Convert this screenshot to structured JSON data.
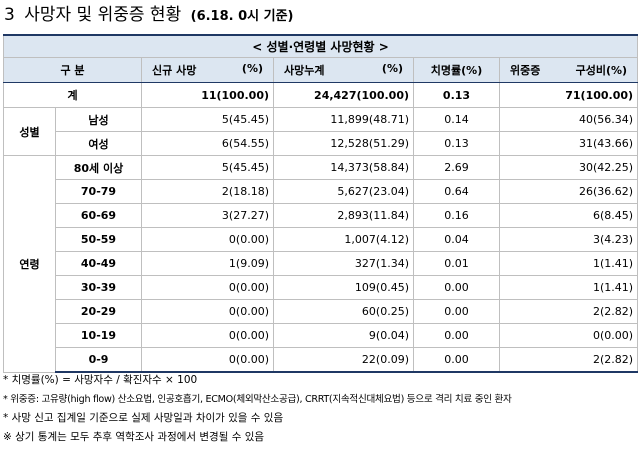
{
  "heading": {
    "number": "3",
    "title": "사망자 및 위중증 현황",
    "subtitle": "(6.18. 0시 기준)"
  },
  "table": {
    "caption": "< 성별·연령별 사망현황 >",
    "headers": {
      "category": "구 분",
      "new_deaths": "신규 사망",
      "new_deaths_unit": "(%)",
      "cumulative": "사망누계",
      "cumulative_unit": "(%)",
      "fatality": "치명률(%)",
      "severe": "위중증",
      "severe_ratio": "구성비(%)"
    },
    "total": {
      "label": "계",
      "new_deaths": "11(100.00)",
      "cumulative": "24,427(100.00)",
      "fatality": "0.13",
      "severe": "71(100.00)"
    },
    "sex": {
      "group_label": "성별",
      "rows": [
        {
          "label": "남성",
          "new_deaths": "5(45.45)",
          "cumulative": "11,899(48.71)",
          "fatality": "0.14",
          "severe": "40(56.34)"
        },
        {
          "label": "여성",
          "new_deaths": "6(54.55)",
          "cumulative": "12,528(51.29)",
          "fatality": "0.13",
          "severe": "31(43.66)"
        }
      ]
    },
    "age": {
      "group_label": "연령",
      "rows": [
        {
          "label": "80세 이상",
          "new_deaths": "5(45.45)",
          "cumulative": "14,373(58.84)",
          "fatality": "2.69",
          "severe": "30(42.25)"
        },
        {
          "label": "70-79",
          "new_deaths": "2(18.18)",
          "cumulative": "5,627(23.04)",
          "fatality": "0.64",
          "severe": "26(36.62)"
        },
        {
          "label": "60-69",
          "new_deaths": "3(27.27)",
          "cumulative": "2,893(11.84)",
          "fatality": "0.16",
          "severe": "6(8.45)"
        },
        {
          "label": "50-59",
          "new_deaths": "0(0.00)",
          "cumulative": "1,007(4.12)",
          "fatality": "0.04",
          "severe": "3(4.23)"
        },
        {
          "label": "40-49",
          "new_deaths": "1(9.09)",
          "cumulative": "327(1.34)",
          "fatality": "0.01",
          "severe": "1(1.41)"
        },
        {
          "label": "30-39",
          "new_deaths": "0(0.00)",
          "cumulative": "109(0.45)",
          "fatality": "0.00",
          "severe": "1(1.41)"
        },
        {
          "label": "20-29",
          "new_deaths": "0(0.00)",
          "cumulative": "60(0.25)",
          "fatality": "0.00",
          "severe": "2(2.82)"
        },
        {
          "label": "10-19",
          "new_deaths": "0(0.00)",
          "cumulative": "9(0.04)",
          "fatality": "0.00",
          "severe": "0(0.00)"
        },
        {
          "label": "0-9",
          "new_deaths": "0(0.00)",
          "cumulative": "22(0.09)",
          "fatality": "0.00",
          "severe": "2(2.82)"
        }
      ]
    }
  },
  "notes": [
    "* 치명률(%) = 사망자수 / 확진자수 × 100",
    "* 위중증: 고유량(high flow) 산소요법, 인공호흡기, ECMO(체외막산소공급), CRRT(지속적신대체요법) 등으로 격리 치료 중인 환자",
    "* 사망 신고 집계일 기준으로 실제 사망일과 차이가 있을 수 있음",
    "※ 상기 통계는 모두 추후 역학조사 과정에서 변경될 수 있음"
  ]
}
